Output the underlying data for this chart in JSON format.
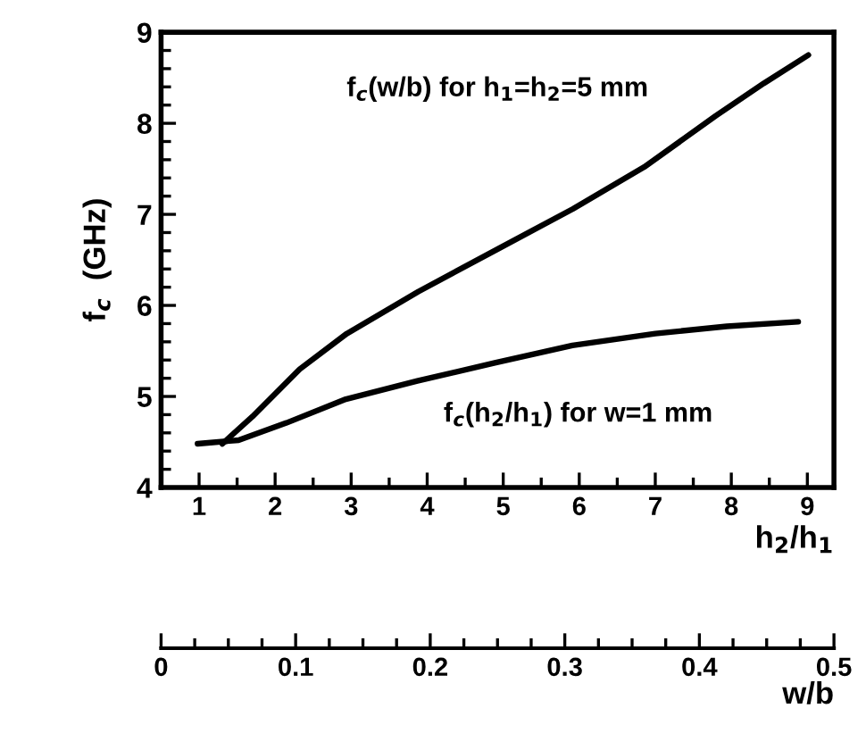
{
  "chart_data": {
    "type": "line",
    "ylabel": "f$_{c}$  (GHz)",
    "xlabel": "h$_{2}$/h$_{1}$",
    "x2label": "w/b",
    "xlim": [
      0.5,
      9.35
    ],
    "xticks": [
      1,
      2,
      3,
      4,
      5,
      6,
      7,
      8,
      9
    ],
    "ylim": [
      4,
      9
    ],
    "yticks": [
      4,
      5,
      6,
      7,
      8,
      9
    ],
    "x2lim": [
      0,
      0.5
    ],
    "x2ticks": [
      0,
      0.1,
      0.2,
      0.3,
      0.4,
      0.5
    ],
    "series": [
      {
        "axis": "x2",
        "color": "#000000",
        "x": [
          0.0455,
          0.068,
          0.103,
          0.138,
          0.191,
          0.249,
          0.306,
          0.359,
          0.412,
          0.448,
          0.481
        ],
        "values": [
          4.48,
          4.78,
          5.3,
          5.69,
          6.15,
          6.61,
          7.06,
          7.52,
          8.08,
          8.44,
          8.75
        ]
      },
      {
        "color": "#000000",
        "x": [
          0.98,
          1.52,
          2.15,
          2.93,
          3.87,
          4.89,
          5.91,
          7.0,
          7.94,
          8.88
        ],
        "values": [
          4.48,
          4.52,
          4.71,
          4.97,
          5.17,
          5.37,
          5.56,
          5.69,
          5.77,
          5.82
        ]
      }
    ],
    "annotations": [
      "f$_{c}$(w/b) for h$_{1}$=h$_{2}$=5 mm",
      "f$_{c}$(h$_{2}$/h$_{1}$) for w=1 mm"
    ],
    "grid": false,
    "legend": false,
    "marker": "none",
    "line_style": "solid"
  }
}
